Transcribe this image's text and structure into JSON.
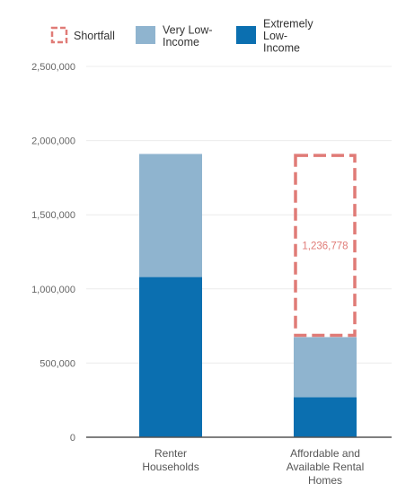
{
  "chart_data": {
    "type": "bar",
    "stacked": true,
    "categories": [
      [
        "Renter",
        "Households"
      ],
      [
        "Affordable and",
        "Available Rental",
        "Homes"
      ]
    ],
    "series": [
      {
        "name": [
          "Extremely",
          "Low-",
          "Income"
        ],
        "values": [
          1080000,
          270000
        ],
        "color": "#0b6fb0"
      },
      {
        "name": [
          "Very Low-",
          "Income"
        ],
        "values": [
          830000,
          405000
        ],
        "color": "#8fb4cf"
      },
      {
        "name": [
          "Shortfall"
        ],
        "values": [
          0,
          1236778
        ],
        "color": "#e07b77",
        "style": "dashed-outline"
      }
    ],
    "annotations": [
      {
        "category_index": 1,
        "series": "Shortfall",
        "text": "1,236,778"
      }
    ],
    "ylim": [
      0,
      2500000
    ],
    "yticks": [
      "0",
      "500,000",
      "1,000,000",
      "1,500,000",
      "2,000,000",
      "2,500,000"
    ],
    "ytick_values": [
      0,
      500000,
      1000000,
      1500000,
      2000000,
      2500000
    ],
    "legend_position": "top",
    "grid": true
  }
}
